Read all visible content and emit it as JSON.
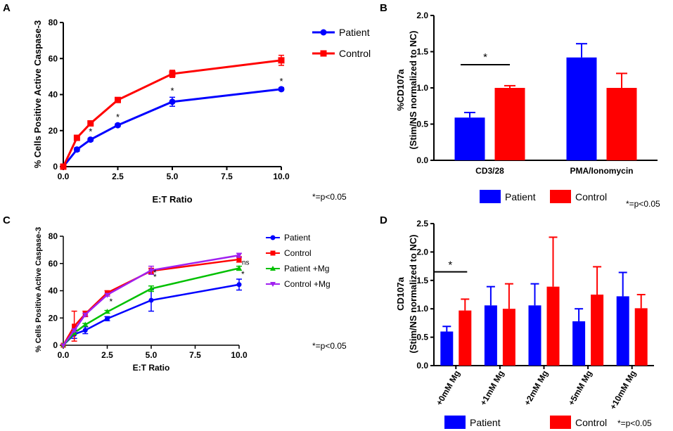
{
  "colors": {
    "patient": "#0000ff",
    "control": "#ff0000",
    "patient_mg": "#00c000",
    "control_mg": "#a020f0",
    "axis": "#000000"
  },
  "chart_data": [
    {
      "panel": "A",
      "type": "line",
      "title": "",
      "xlabel": "E:T Ratio",
      "ylabel": "% Cells Positive Active Caspase-3",
      "xlim": [
        0,
        10
      ],
      "ylim": [
        0,
        80
      ],
      "x_ticks": [
        "0.0",
        "2.5",
        "5.0",
        "7.5",
        "10.0"
      ],
      "y_ticks": [
        "0",
        "20",
        "40",
        "60",
        "80"
      ],
      "legend": [
        "Patient",
        "Control"
      ],
      "note": "*=p<0.05",
      "series": [
        {
          "name": "Patient",
          "color": "#0000ff",
          "marker": "circle",
          "x": [
            0,
            0.625,
            1.25,
            2.5,
            5,
            10
          ],
          "y": [
            0,
            9.5,
            15,
            23,
            36,
            43
          ],
          "err": [
            0,
            1,
            0.8,
            0.8,
            2.5,
            0.8
          ],
          "stars": [
            "",
            "*",
            "*",
            "*",
            "*",
            "*"
          ]
        },
        {
          "name": "Control",
          "color": "#ff0000",
          "marker": "square",
          "x": [
            0,
            0.625,
            1.25,
            2.5,
            5,
            10
          ],
          "y": [
            0,
            16,
            24,
            37,
            51.5,
            59
          ],
          "err": [
            0,
            1.2,
            1,
            0.8,
            2,
            2.8
          ],
          "stars": [
            "",
            "",
            "",
            "",
            "",
            ""
          ]
        }
      ]
    },
    {
      "panel": "B",
      "type": "bar",
      "title": "",
      "xlabel": "",
      "ylabel": "%CD107a\n(Stim/NS normalized to NC)",
      "ylabel_lines": [
        "%CD107a",
        "(Stim/NS normalized to NC)"
      ],
      "ylim": [
        0,
        2.0
      ],
      "y_ticks": [
        "0.0",
        "0.5",
        "1.0",
        "1.5",
        "2.0"
      ],
      "categories": [
        "CD3/28",
        "PMA/Ionomycin"
      ],
      "legend": [
        "Patient",
        "Control"
      ],
      "note": "*=p<0.05",
      "sig_label": "*",
      "series": [
        {
          "name": "Patient",
          "color": "#0000ff",
          "values": [
            0.59,
            1.42
          ],
          "err": [
            0.07,
            0.19
          ]
        },
        {
          "name": "Control",
          "color": "#ff0000",
          "values": [
            1.0,
            1.0
          ],
          "err": [
            0.03,
            0.2
          ]
        }
      ]
    },
    {
      "panel": "C",
      "type": "line",
      "title": "",
      "xlabel": "E:T Ratio",
      "ylabel": "% Cells Positive Active Caspase-3",
      "xlim": [
        0,
        10
      ],
      "ylim": [
        0,
        80
      ],
      "x_ticks": [
        "0.0",
        "2.5",
        "5.0",
        "7.5",
        "10.0"
      ],
      "y_ticks": [
        "0",
        "20",
        "40",
        "60",
        "80"
      ],
      "legend": [
        "Patient",
        "Control",
        "Patient +Mg",
        "Control +Mg"
      ],
      "note": "*=p<0.05",
      "annotations": [
        "*",
        "*",
        "*",
        "ns",
        "*"
      ],
      "series": [
        {
          "name": "Patient",
          "color": "#0000ff",
          "marker": "circle",
          "x": [
            0,
            0.625,
            1.25,
            2.5,
            5,
            10
          ],
          "y": [
            0,
            8,
            11,
            19.5,
            33,
            44.5
          ],
          "err": [
            0,
            3,
            2.5,
            1.5,
            8,
            4
          ]
        },
        {
          "name": "Control",
          "color": "#ff0000",
          "marker": "square",
          "x": [
            0,
            0.625,
            1.25,
            2.5,
            5,
            10
          ],
          "y": [
            0,
            14,
            23,
            38.5,
            54.5,
            63
          ],
          "err": [
            0,
            11,
            2,
            1.5,
            2,
            2
          ]
        },
        {
          "name": "Patient +Mg",
          "color": "#00c000",
          "marker": "triangle-up",
          "x": [
            0,
            0.625,
            1.25,
            2.5,
            5,
            10
          ],
          "y": [
            0,
            9,
            15,
            24.5,
            41.5,
            56.5
          ],
          "err": [
            0,
            1,
            1,
            1,
            2,
            1.5
          ]
        },
        {
          "name": "Control +Mg",
          "color": "#a020f0",
          "marker": "triangle-down",
          "x": [
            0,
            0.625,
            1.25,
            2.5,
            5,
            10
          ],
          "y": [
            0,
            11,
            22.5,
            37,
            55,
            66
          ],
          "err": [
            0,
            1,
            1,
            1,
            3,
            1.5
          ]
        }
      ]
    },
    {
      "panel": "D",
      "type": "bar",
      "title": "",
      "xlabel": "",
      "ylabel": "CD107a\n(Stim/NS normalized to NC)",
      "ylabel_lines": [
        "CD107a",
        "(Stim/NS normalized to NC)"
      ],
      "ylim": [
        0,
        2.5
      ],
      "y_ticks": [
        "0.0",
        "0.5",
        "1.0",
        "1.5",
        "2.0",
        "2.5"
      ],
      "categories": [
        "+0mM Mg",
        "+1mM Mg",
        "+2mM Mg",
        "+5mM Mg",
        "+10mM Mg"
      ],
      "legend": [
        "Patient",
        "Control"
      ],
      "note": "*=p<0.05",
      "sig_label": "*",
      "series": [
        {
          "name": "Patient",
          "color": "#0000ff",
          "values": [
            0.6,
            1.06,
            1.06,
            0.78,
            1.22
          ],
          "err": [
            0.09,
            0.33,
            0.38,
            0.22,
            0.42
          ]
        },
        {
          "name": "Control",
          "color": "#ff0000",
          "values": [
            0.97,
            1.0,
            1.39,
            1.25,
            1.01
          ],
          "err": [
            0.2,
            0.44,
            0.87,
            0.49,
            0.24
          ]
        }
      ]
    }
  ]
}
